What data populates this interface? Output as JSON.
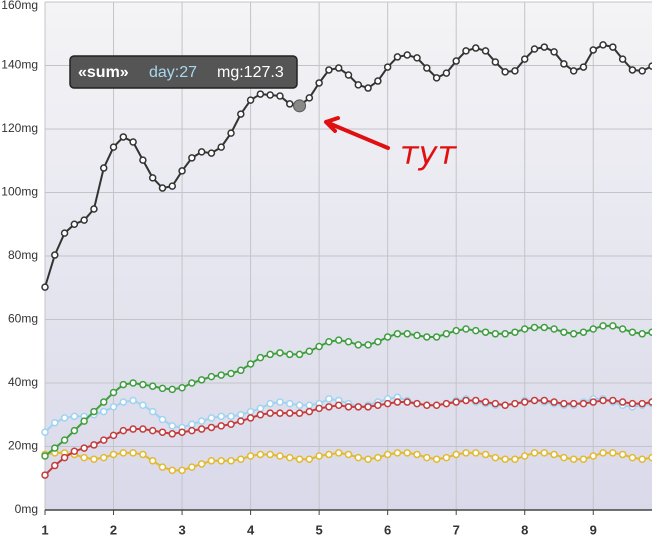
{
  "chart_data": {
    "type": "line",
    "x": [
      1,
      2,
      3,
      4,
      5,
      6,
      7,
      8,
      9,
      10,
      11,
      12,
      13,
      14,
      15,
      16,
      17,
      18,
      19,
      20,
      21,
      22,
      23,
      24,
      25,
      26,
      27,
      28,
      29,
      30,
      31,
      32,
      33,
      34,
      35,
      36,
      37,
      38,
      39,
      40,
      41,
      42,
      43,
      44,
      45,
      46,
      47,
      48,
      49,
      50,
      51,
      52,
      53,
      54,
      55,
      56,
      57,
      58,
      59,
      60,
      61,
      62,
      63
    ],
    "xlim": [
      1,
      63
    ],
    "xticks": [
      {
        "value": 1,
        "label": "1"
      },
      {
        "value": 8,
        "label": "2"
      },
      {
        "value": 15,
        "label": "3"
      },
      {
        "value": 22,
        "label": "4"
      },
      {
        "value": 29,
        "label": "5"
      },
      {
        "value": 36,
        "label": "6"
      },
      {
        "value": 43,
        "label": "7"
      },
      {
        "value": 50,
        "label": "8"
      },
      {
        "value": 57,
        "label": "9"
      }
    ],
    "ylim": [
      0,
      160
    ],
    "yticks": [
      {
        "value": 0,
        "label": "0mg"
      },
      {
        "value": 20,
        "label": "20mg"
      },
      {
        "value": 40,
        "label": "40mg"
      },
      {
        "value": 60,
        "label": "60mg"
      },
      {
        "value": 80,
        "label": "80mg"
      },
      {
        "value": 100,
        "label": "100mg"
      },
      {
        "value": 120,
        "label": "120mg"
      },
      {
        "value": 140,
        "label": "140mg"
      },
      {
        "value": 160,
        "label": "160mg"
      }
    ],
    "grid": true,
    "series": [
      {
        "color": "#9fd3f0",
        "values": [
          24.5,
          27.5,
          29,
          29.5,
          29.5,
          30,
          31,
          32.5,
          34,
          34.5,
          33,
          31,
          28.5,
          26.5,
          26,
          27,
          28,
          29,
          29.5,
          29.5,
          30,
          31,
          32,
          33.5,
          34,
          33.5,
          33,
          33,
          33.5,
          35,
          34.5,
          33.5,
          32.5,
          33,
          34,
          35,
          35.5,
          34.5,
          33.5,
          33,
          33,
          33.5,
          34.5,
          35,
          34,
          33.5,
          33,
          33,
          33.5,
          34.5,
          34.5,
          34,
          33.5,
          33,
          33,
          34,
          35,
          35,
          34,
          33,
          32.5,
          33,
          33.5
        ]
      },
      {
        "color": "#e2b92f",
        "values": [
          17.5,
          18,
          18,
          17.5,
          16.5,
          16,
          16.5,
          17.5,
          18,
          18,
          17.5,
          15.5,
          13.5,
          12.5,
          12.5,
          13.5,
          14.5,
          15.5,
          15.5,
          15.5,
          16,
          17,
          17.5,
          17.5,
          17,
          16.5,
          16,
          16,
          17,
          17.5,
          18,
          17.5,
          16.5,
          16,
          16.5,
          17.5,
          18,
          18,
          17.5,
          16.5,
          16,
          16.5,
          17.5,
          18,
          18,
          17.5,
          16.5,
          16,
          16,
          17,
          18,
          18,
          17.5,
          16.5,
          16,
          16,
          17,
          18,
          18,
          17.5,
          16.5,
          16,
          16.5
        ]
      },
      {
        "color": "#c43c3c",
        "values": [
          11,
          14,
          16.5,
          18.5,
          19.5,
          20.5,
          22,
          23.5,
          25,
          25.5,
          25.5,
          25,
          24.5,
          24,
          24.5,
          25,
          25.5,
          26,
          26.5,
          27,
          28,
          29,
          30,
          30.5,
          30.5,
          30.5,
          30.5,
          31,
          32,
          32.5,
          33,
          32.5,
          32.5,
          32.5,
          33,
          33.5,
          34,
          34,
          33.5,
          33,
          33,
          33.5,
          34,
          34.5,
          34.5,
          34,
          33.5,
          33,
          33.5,
          34,
          34.5,
          34.5,
          34,
          33.5,
          33.5,
          33.5,
          34,
          34.5,
          34.5,
          34,
          33.5,
          33.5,
          34
        ]
      },
      {
        "color": "#3f9e3f",
        "values": [
          17,
          19.5,
          22,
          25,
          28,
          31,
          34,
          37,
          39.5,
          40,
          39.5,
          39,
          38.3,
          38,
          38.5,
          40,
          41,
          42,
          42.5,
          43,
          44,
          46,
          48,
          49,
          49.5,
          49,
          49,
          50,
          51.5,
          53,
          53.5,
          53,
          52,
          52,
          53,
          54.5,
          55.5,
          55.5,
          55,
          54.5,
          54.5,
          55.5,
          56.5,
          57,
          56.5,
          56,
          55.5,
          55.5,
          56,
          57,
          57.5,
          57.5,
          57,
          56,
          55.5,
          56,
          57,
          58,
          58,
          57,
          56,
          55.5,
          56
        ]
      },
      {
        "color": "#333333",
        "values": [
          70.2,
          80.3,
          87.2,
          90,
          91.3,
          94.8,
          107.7,
          114.3,
          117.5,
          115.9,
          110.2,
          104.6,
          101.4,
          102,
          106.8,
          110.9,
          112.8,
          112.4,
          114.3,
          118.7,
          124.7,
          129.1,
          131,
          130.7,
          130.4,
          127.9,
          127.3,
          129.8,
          134.5,
          138.6,
          139.2,
          137,
          133.9,
          132.9,
          135.1,
          139.5,
          142.7,
          143.3,
          142.4,
          139.2,
          136.1,
          137.6,
          141.4,
          144.6,
          145.5,
          144.6,
          141.1,
          138,
          138.3,
          142,
          145.2,
          145.8,
          144.3,
          140.5,
          138.3,
          139.5,
          144.9,
          146.5,
          145.8,
          142,
          138.6,
          138.3,
          139.8
        ]
      }
    ],
    "tooltip": {
      "series": "«sum»",
      "day": "day:27",
      "mg": "mg:127.3"
    },
    "annotation": "тут"
  }
}
